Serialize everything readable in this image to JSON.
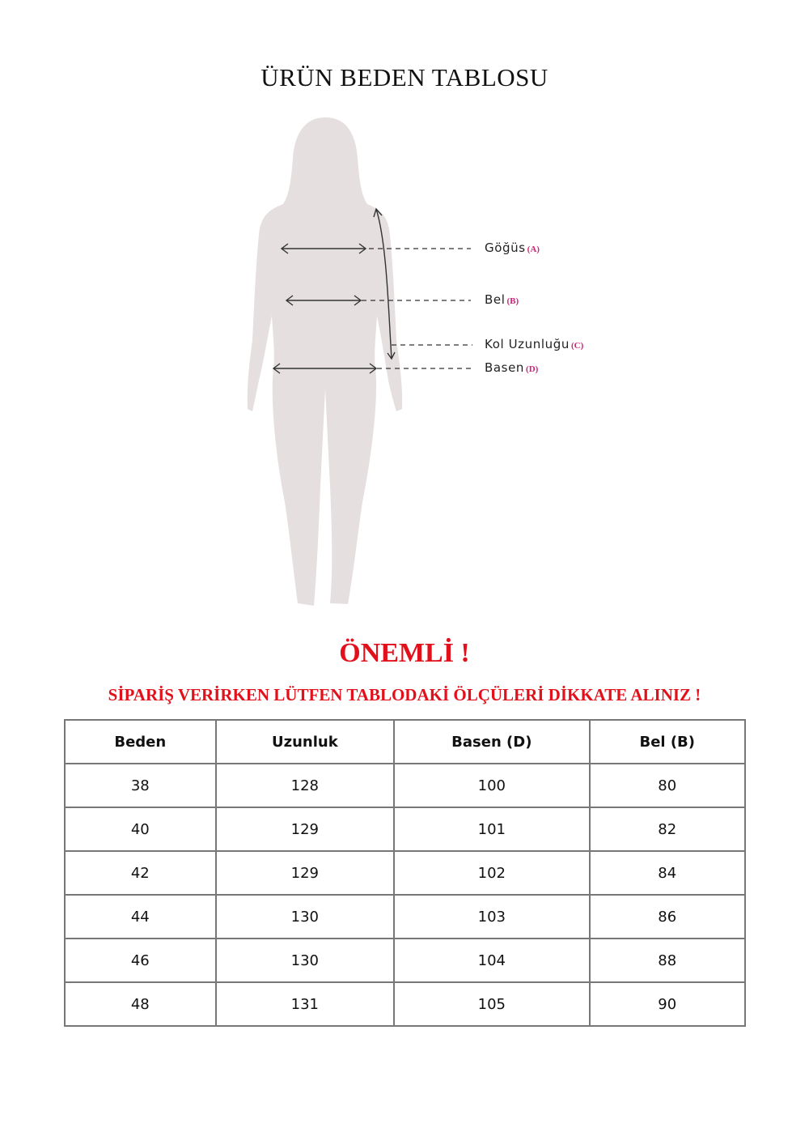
{
  "title": "ÜRÜN BEDEN TABLOSU",
  "diagram": {
    "labels": [
      {
        "text": "Göğüs",
        "code": "(A)"
      },
      {
        "text": "Bel",
        "code": "(B)"
      },
      {
        "text": "Kol Uzunluğu",
        "code": "(C)"
      },
      {
        "text": "Basen",
        "code": "(D)"
      }
    ],
    "silhouette_color": "#e5dfe0",
    "code_color": "#d0237a"
  },
  "important": "ÖNEMLİ !",
  "warning": "SİPARİŞ VERİRKEN LÜTFEN TABLODAKİ ÖLÇÜLERİ DİKKATE ALINIZ !",
  "accent_color": "#e2101a",
  "table": {
    "headers": [
      "Beden",
      "Uzunluk",
      "Basen (D)",
      "Bel (B)"
    ],
    "rows": [
      [
        "38",
        "128",
        "100",
        "80"
      ],
      [
        "40",
        "129",
        "101",
        "82"
      ],
      [
        "42",
        "129",
        "102",
        "84"
      ],
      [
        "44",
        "130",
        "103",
        "86"
      ],
      [
        "46",
        "130",
        "104",
        "88"
      ],
      [
        "48",
        "131",
        "105",
        "90"
      ]
    ]
  }
}
